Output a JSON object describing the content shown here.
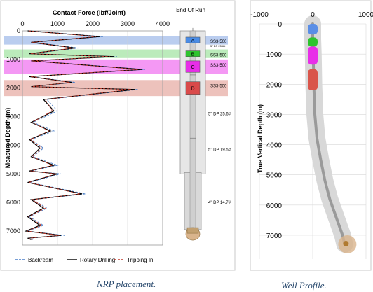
{
  "chart_data": [
    {
      "type": "line",
      "title": "Contact Force (lbf/Joint)",
      "ylabel": "Measured Depth (m)",
      "xlim": [
        0,
        4000
      ],
      "ylim": [
        7300,
        -100
      ],
      "x_ticks": [
        "0",
        "1000",
        "2000",
        "3000",
        "4000"
      ],
      "y_ticks": [
        "0",
        "1000",
        "2000",
        "3000",
        "4000",
        "5000",
        "6000",
        "7000"
      ],
      "legend_position": "bottom",
      "series": [
        {
          "name": "Backream",
          "color": "#4a7fc8",
          "style": "dashed",
          "x": [
            200,
            2300,
            300,
            1600,
            250,
            2700,
            300,
            3500,
            250,
            1500,
            300,
            3300,
            700,
            1000,
            300,
            900,
            250,
            600,
            300,
            1000,
            250,
            1100,
            200,
            1800,
            300,
            700,
            200,
            600,
            150,
            1200,
            200,
            300
          ],
          "y": [
            0,
            200,
            400,
            600,
            800,
            900,
            1050,
            1350,
            1600,
            1800,
            1950,
            2050,
            2400,
            2800,
            3200,
            3500,
            3800,
            4100,
            4400,
            4700,
            4900,
            5000,
            5300,
            5700,
            5900,
            6200,
            6500,
            6800,
            7000,
            7150,
            7250,
            7300
          ]
        },
        {
          "name": "Rotary Drilling",
          "color": "#000000",
          "style": "solid",
          "x": [
            150,
            2200,
            250,
            1500,
            200,
            2600,
            250,
            3400,
            200,
            1400,
            250,
            3200,
            600,
            900,
            250,
            800,
            200,
            500,
            250,
            900,
            200,
            1000,
            150,
            1700,
            250,
            600,
            150,
            500,
            100,
            1100,
            150,
            250
          ],
          "y": [
            0,
            200,
            400,
            600,
            800,
            900,
            1050,
            1350,
            1600,
            1800,
            1950,
            2050,
            2400,
            2800,
            3200,
            3500,
            3800,
            4100,
            4400,
            4700,
            4900,
            5000,
            5300,
            5700,
            5900,
            6200,
            6500,
            6800,
            7000,
            7150,
            7250,
            7300
          ]
        },
        {
          "name": "Tripping In",
          "color": "#c0392b",
          "style": "dashed",
          "x": [
            180,
            2100,
            280,
            1450,
            230,
            2500,
            280,
            3300,
            230,
            1350,
            280,
            3100,
            650,
            850,
            280,
            750,
            230,
            550,
            280,
            850,
            230,
            950,
            180,
            1650,
            280,
            650,
            180,
            550,
            130,
            1050,
            180,
            280
          ],
          "y": [
            0,
            200,
            400,
            600,
            800,
            900,
            1050,
            1350,
            1600,
            1800,
            1950,
            2050,
            2400,
            2800,
            3200,
            3500,
            3800,
            4100,
            4400,
            4700,
            4900,
            5000,
            5300,
            5700,
            5900,
            6200,
            6500,
            6800,
            7000,
            7150,
            7250,
            7300
          ]
        }
      ],
      "bands": [
        {
          "label": "A",
          "from": 180,
          "to": 480,
          "color": "#9db8e8"
        },
        {
          "label": "B",
          "from": 650,
          "to": 950,
          "color": "#9ee29e"
        },
        {
          "label": "C",
          "from": 1000,
          "to": 1500,
          "color": "#f06cf0"
        },
        {
          "label": "D",
          "from": 1720,
          "to": 2280,
          "color": "#e6a8a0"
        }
      ],
      "string": {
        "title": "End Of Run",
        "tools": [
          {
            "label": "A",
            "name": "SS3-500",
            "color": "#4a8ce6"
          },
          {
            "label": "B",
            "name": "SS3-500",
            "color": "#2ec42e"
          },
          {
            "label": "C",
            "name": "SS3-500",
            "color": "#e82ee8"
          },
          {
            "label": "D",
            "name": "SS3-500",
            "color": "#d94a4a"
          }
        ],
        "pipe_labels": [
          "5\" DP 25.6#",
          "5\" DP 19.5#",
          "4\" DP 14.7#"
        ],
        "small_label": "5\" DP 25.6#"
      },
      "caption": "NRP placement."
    },
    {
      "type": "line",
      "ylabel": "True Vertical Depth (m)",
      "xlim": [
        -1000,
        1000
      ],
      "ylim": [
        7500,
        0
      ],
      "x_ticks": [
        "-1000",
        "0",
        "1000"
      ],
      "y_ticks": [
        "0",
        "1000",
        "2000",
        "3000",
        "4000",
        "5000",
        "6000",
        "7000"
      ],
      "series": [
        {
          "color": "#9a9a9a",
          "x": [
            0,
            0,
            10,
            20,
            40,
            80,
            150,
            230,
            320,
            420,
            500,
            560,
            600
          ],
          "y": [
            0,
            500,
            1000,
            2000,
            3000,
            3800,
            4500,
            5200,
            5800,
            6300,
            6700,
            7000,
            7300
          ]
        }
      ],
      "markers": [
        {
          "label": "A",
          "from": 0,
          "to": 350,
          "color": "#5a8ee6"
        },
        {
          "label": "B",
          "from": 450,
          "to": 750,
          "color": "#2ec42e"
        },
        {
          "label": "C",
          "from": 750,
          "to": 1350,
          "color": "#e82ee8"
        },
        {
          "label": "D",
          "from": 1500,
          "to": 2200,
          "color": "#d9554a"
        }
      ],
      "bit": {
        "x": 650,
        "y": 7300,
        "color": "#d9b48c"
      },
      "caption": "Well Profile."
    }
  ]
}
